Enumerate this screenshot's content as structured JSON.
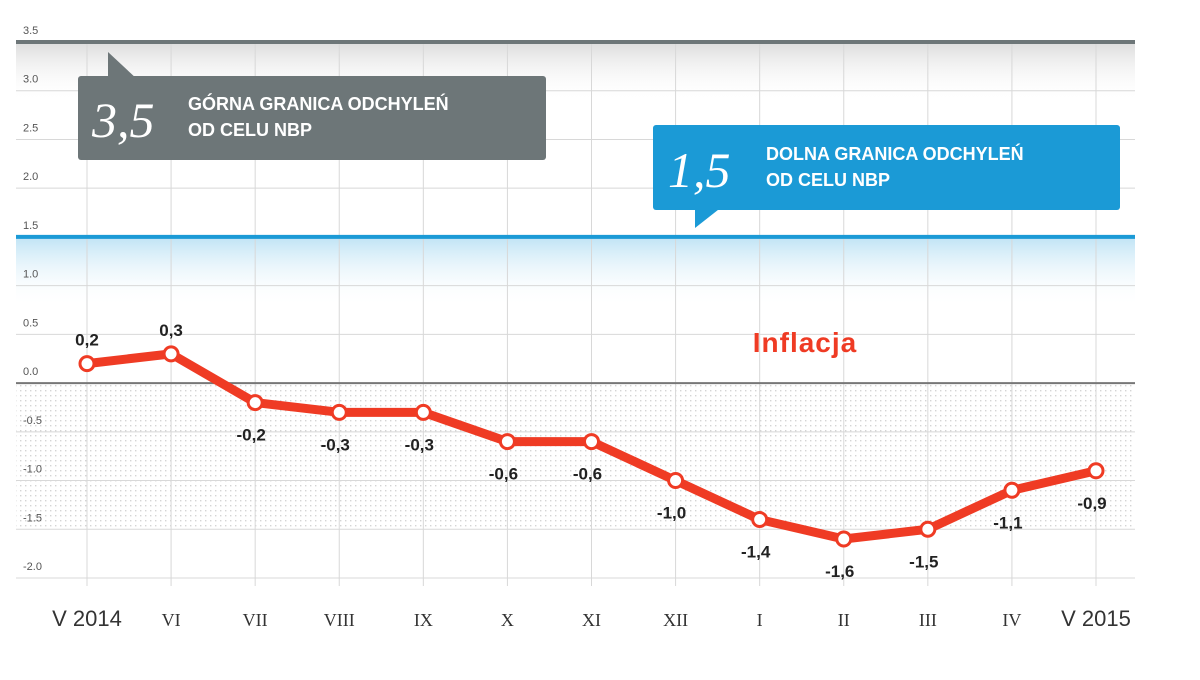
{
  "chart_data": {
    "type": "line",
    "series_title": "Inflacja",
    "categories": [
      "V 2014",
      "VI",
      "VII",
      "VIII",
      "IX",
      "X",
      "XI",
      "XII",
      "I",
      "II",
      "III",
      "IV",
      "V 2015"
    ],
    "values": [
      0.2,
      0.3,
      -0.2,
      -0.3,
      -0.3,
      -0.6,
      -0.6,
      -1.0,
      -1.4,
      -1.6,
      -1.5,
      -1.1,
      -0.9
    ],
    "value_labels": [
      "0,2",
      "0,3",
      "-0,2",
      "-0,3",
      "-0,3",
      "-0,6",
      "-0,6",
      "-1,0",
      "-1,4",
      "-1,6",
      "-1,5",
      "-1,1",
      "-0,9"
    ],
    "ylim": [
      -2.0,
      3.5
    ],
    "y_ticks": [
      {
        "value": 3.5,
        "label": "3.5"
      },
      {
        "value": 3.0,
        "label": "3.0"
      },
      {
        "value": 2.5,
        "label": "2.5"
      },
      {
        "value": 2.0,
        "label": "2.0"
      },
      {
        "value": 1.5,
        "label": "1.5"
      },
      {
        "value": 1.0,
        "label": "1.0"
      },
      {
        "value": 0.5,
        "label": "0.5"
      },
      {
        "value": 0.0,
        "label": "0.0"
      },
      {
        "value": -0.5,
        "label": "-0.5"
      },
      {
        "value": -1.0,
        "label": "-1.0"
      },
      {
        "value": -1.5,
        "label": "-1.5"
      },
      {
        "value": -2.0,
        "label": "-2.0"
      }
    ],
    "grid": true,
    "reference_lines": [
      {
        "value": 3.5,
        "number": "3,5",
        "text_line1": "GÓRNA GRANICA ODCHYLEŃ",
        "text_line2": "OD CELU NBP",
        "color": "#6d7678"
      },
      {
        "value": 1.5,
        "number": "1,5",
        "text_line1": "DOLNA GRANICA ODCHYLEŃ",
        "text_line2": "OD CELU NBP",
        "color": "#1b9ad6"
      }
    ]
  },
  "colors": {
    "series": "#ef3b24",
    "upper_band": "#6d7678",
    "lower_band": "#1b9ad6",
    "grid": "#d8d8d8",
    "zero_line": "#777777"
  }
}
